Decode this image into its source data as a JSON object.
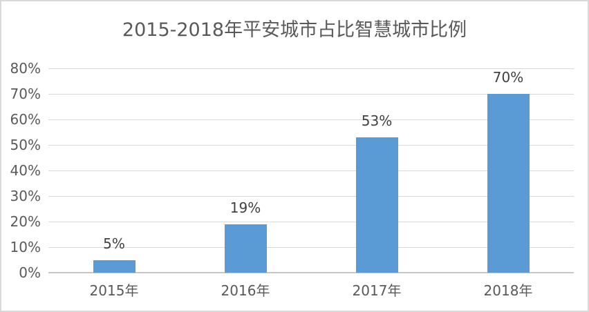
{
  "chart_data": {
    "type": "bar",
    "title": "2015-2018年平安城市占比智慧城市比例",
    "categories": [
      "2015年",
      "2016年",
      "2017年",
      "2018年"
    ],
    "values": [
      5,
      19,
      53,
      70
    ],
    "data_labels": [
      "5%",
      "19%",
      "53%",
      "70%"
    ],
    "xlabel": "",
    "ylabel": "",
    "ylim": [
      0,
      80
    ],
    "ytick_step": 10,
    "ytick_labels": [
      "0%",
      "10%",
      "20%",
      "30%",
      "40%",
      "50%",
      "60%",
      "70%",
      "80%"
    ],
    "grid": true,
    "legend": false,
    "colors": {
      "bar": "#5B9BD5",
      "title_text": "#595959",
      "axis_text": "#595959",
      "data_label_text": "#404040",
      "gridline": "#D9D9D9",
      "axis_line": "#C6C6C6",
      "frame_border": "#D9D9D9",
      "background": "#FFFFFF"
    }
  }
}
